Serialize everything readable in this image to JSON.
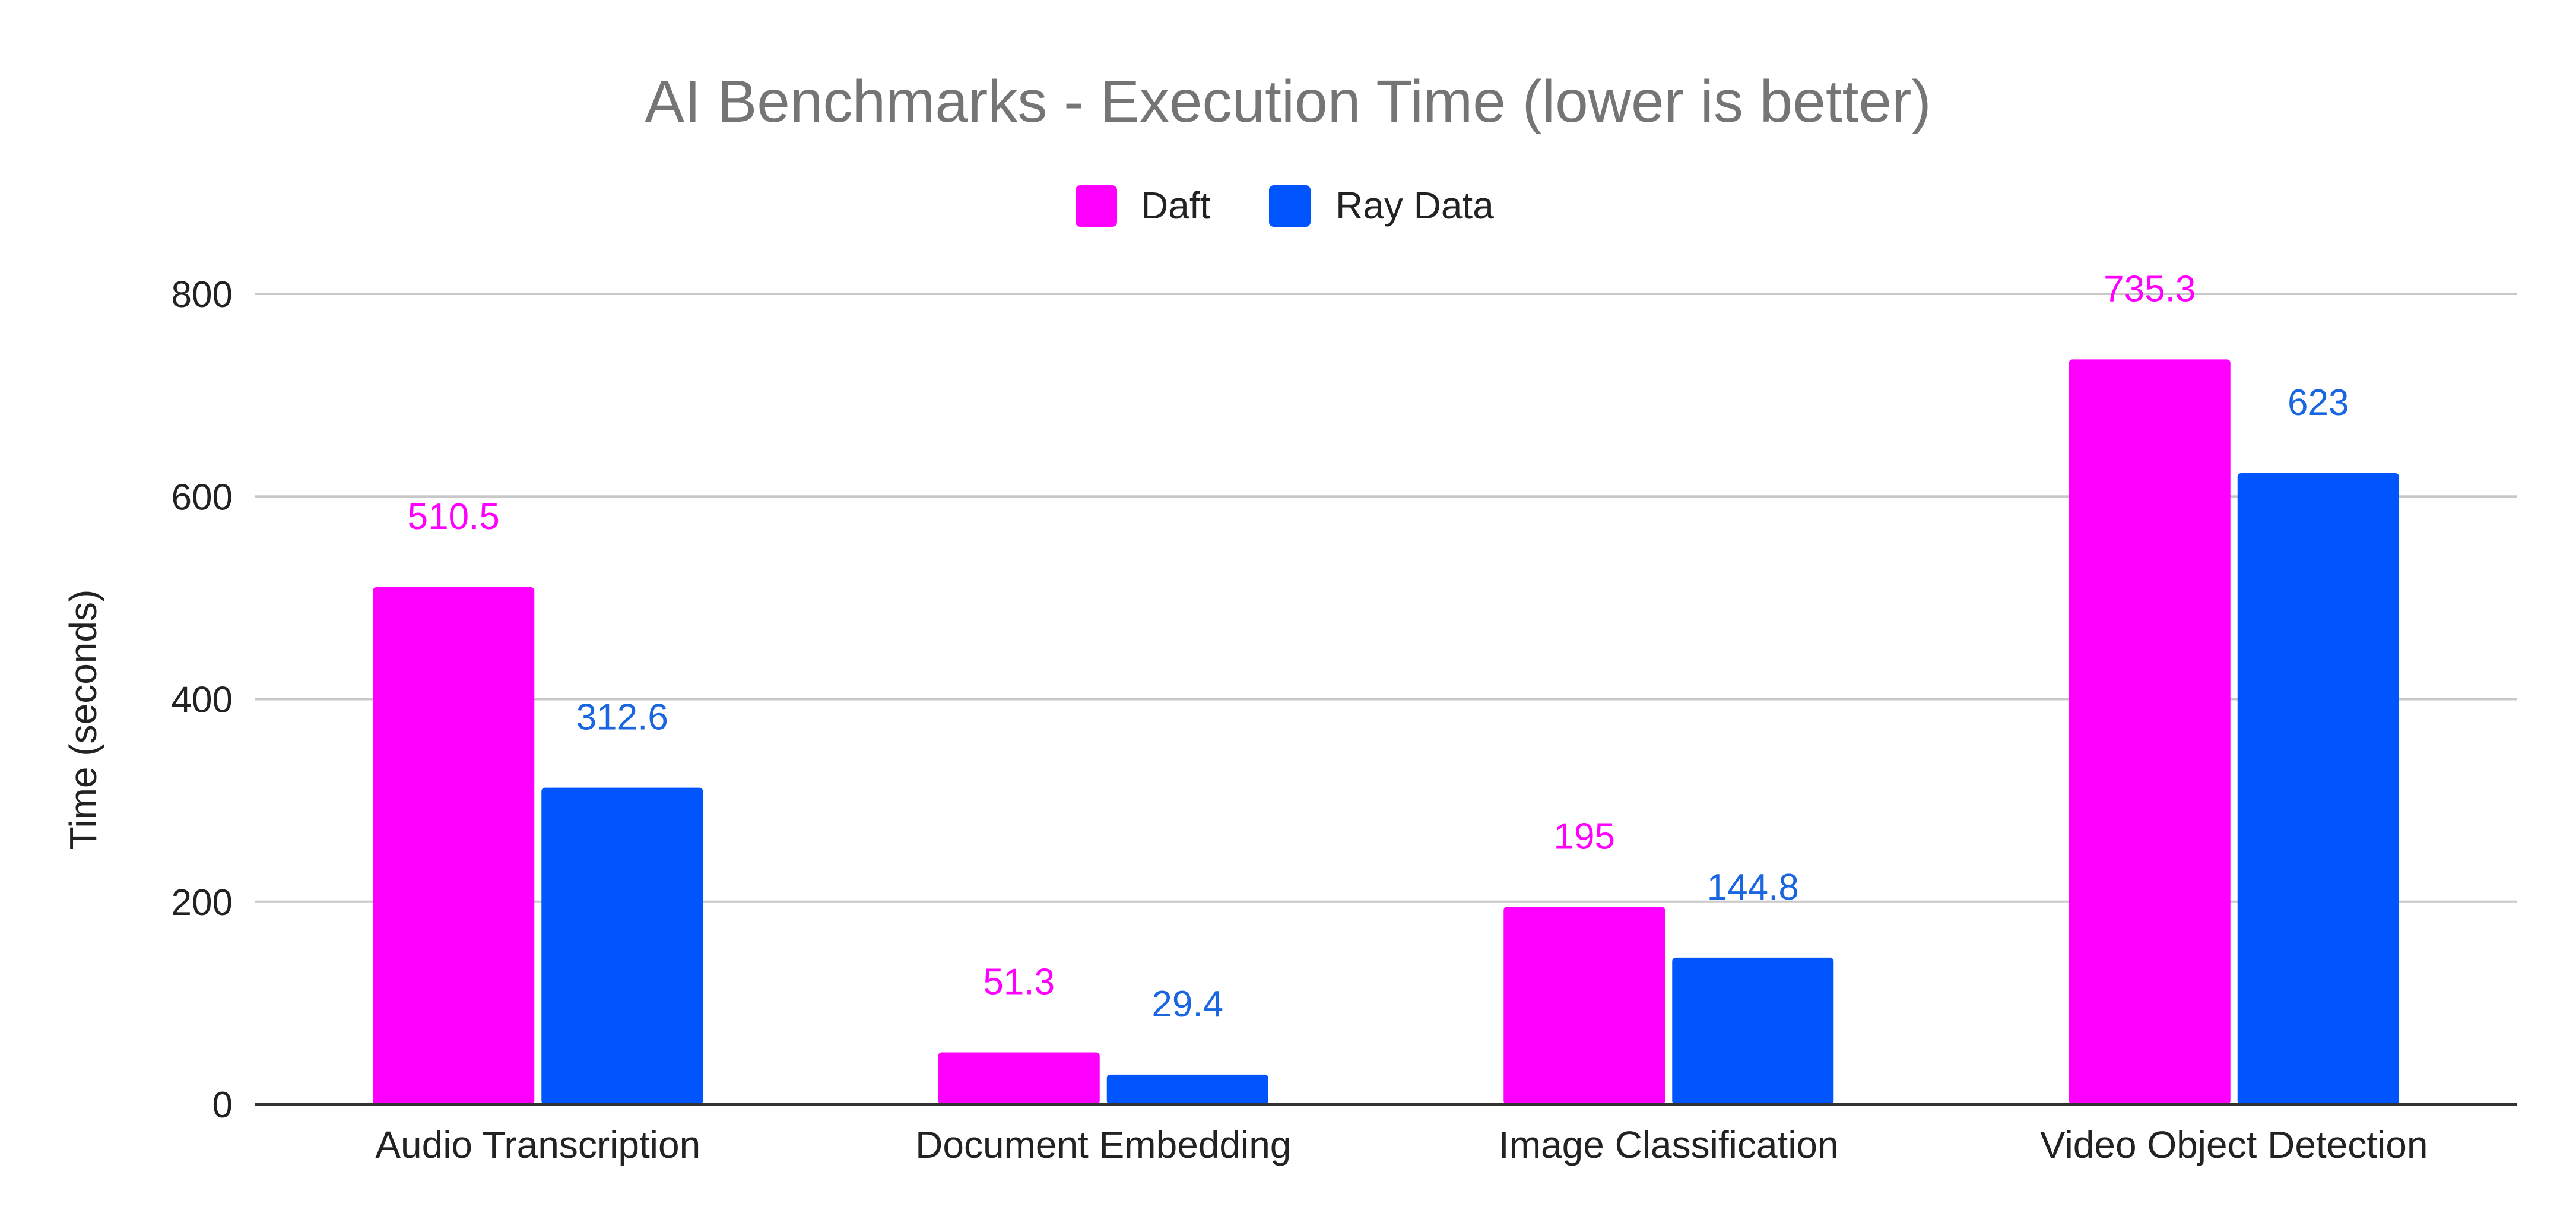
{
  "chart_data": {
    "type": "bar",
    "title": "AI Benchmarks - Execution Time (lower is better)",
    "xlabel": "",
    "ylabel": "Time (seconds)",
    "categories": [
      "Audio Transcription",
      "Document Embedding",
      "Image Classification",
      "Video Object Detection"
    ],
    "series": [
      {
        "name": "Daft",
        "color": "#ff00ff",
        "values": [
          510.5,
          51.3,
          195,
          735.3
        ],
        "labels": [
          "510.5",
          "51.3",
          "195",
          "735.3"
        ]
      },
      {
        "name": "Ray Data",
        "color": "#0055ff",
        "values": [
          312.6,
          29.4,
          144.8,
          623
        ],
        "labels": [
          "312.6",
          "29.4",
          "144.8",
          "623"
        ]
      }
    ],
    "ylim": [
      0,
      800
    ],
    "yticks": [
      0,
      200,
      400,
      600,
      800
    ],
    "ytick_labels": [
      "0",
      "200",
      "400",
      "600",
      "800"
    ],
    "grid": true,
    "legend_position": "top-center",
    "label_colors": {
      "Daft": "#ff00ff",
      "Ray Data": "#1a66e0"
    }
  }
}
